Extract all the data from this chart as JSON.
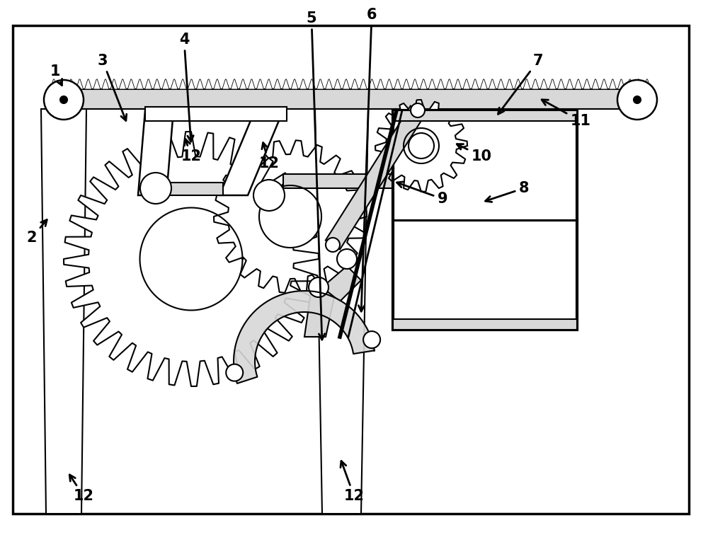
{
  "fig_width": 10.0,
  "fig_height": 7.66,
  "bg_color": "#ffffff",
  "line_color": "#000000",
  "line_width": 1.5,
  "font_size": 15,
  "arrow_color": "#000000",
  "gear_fill": "#ffffff",
  "gray_fill": "#d8d8d8",
  "dark_fill": "#888888"
}
